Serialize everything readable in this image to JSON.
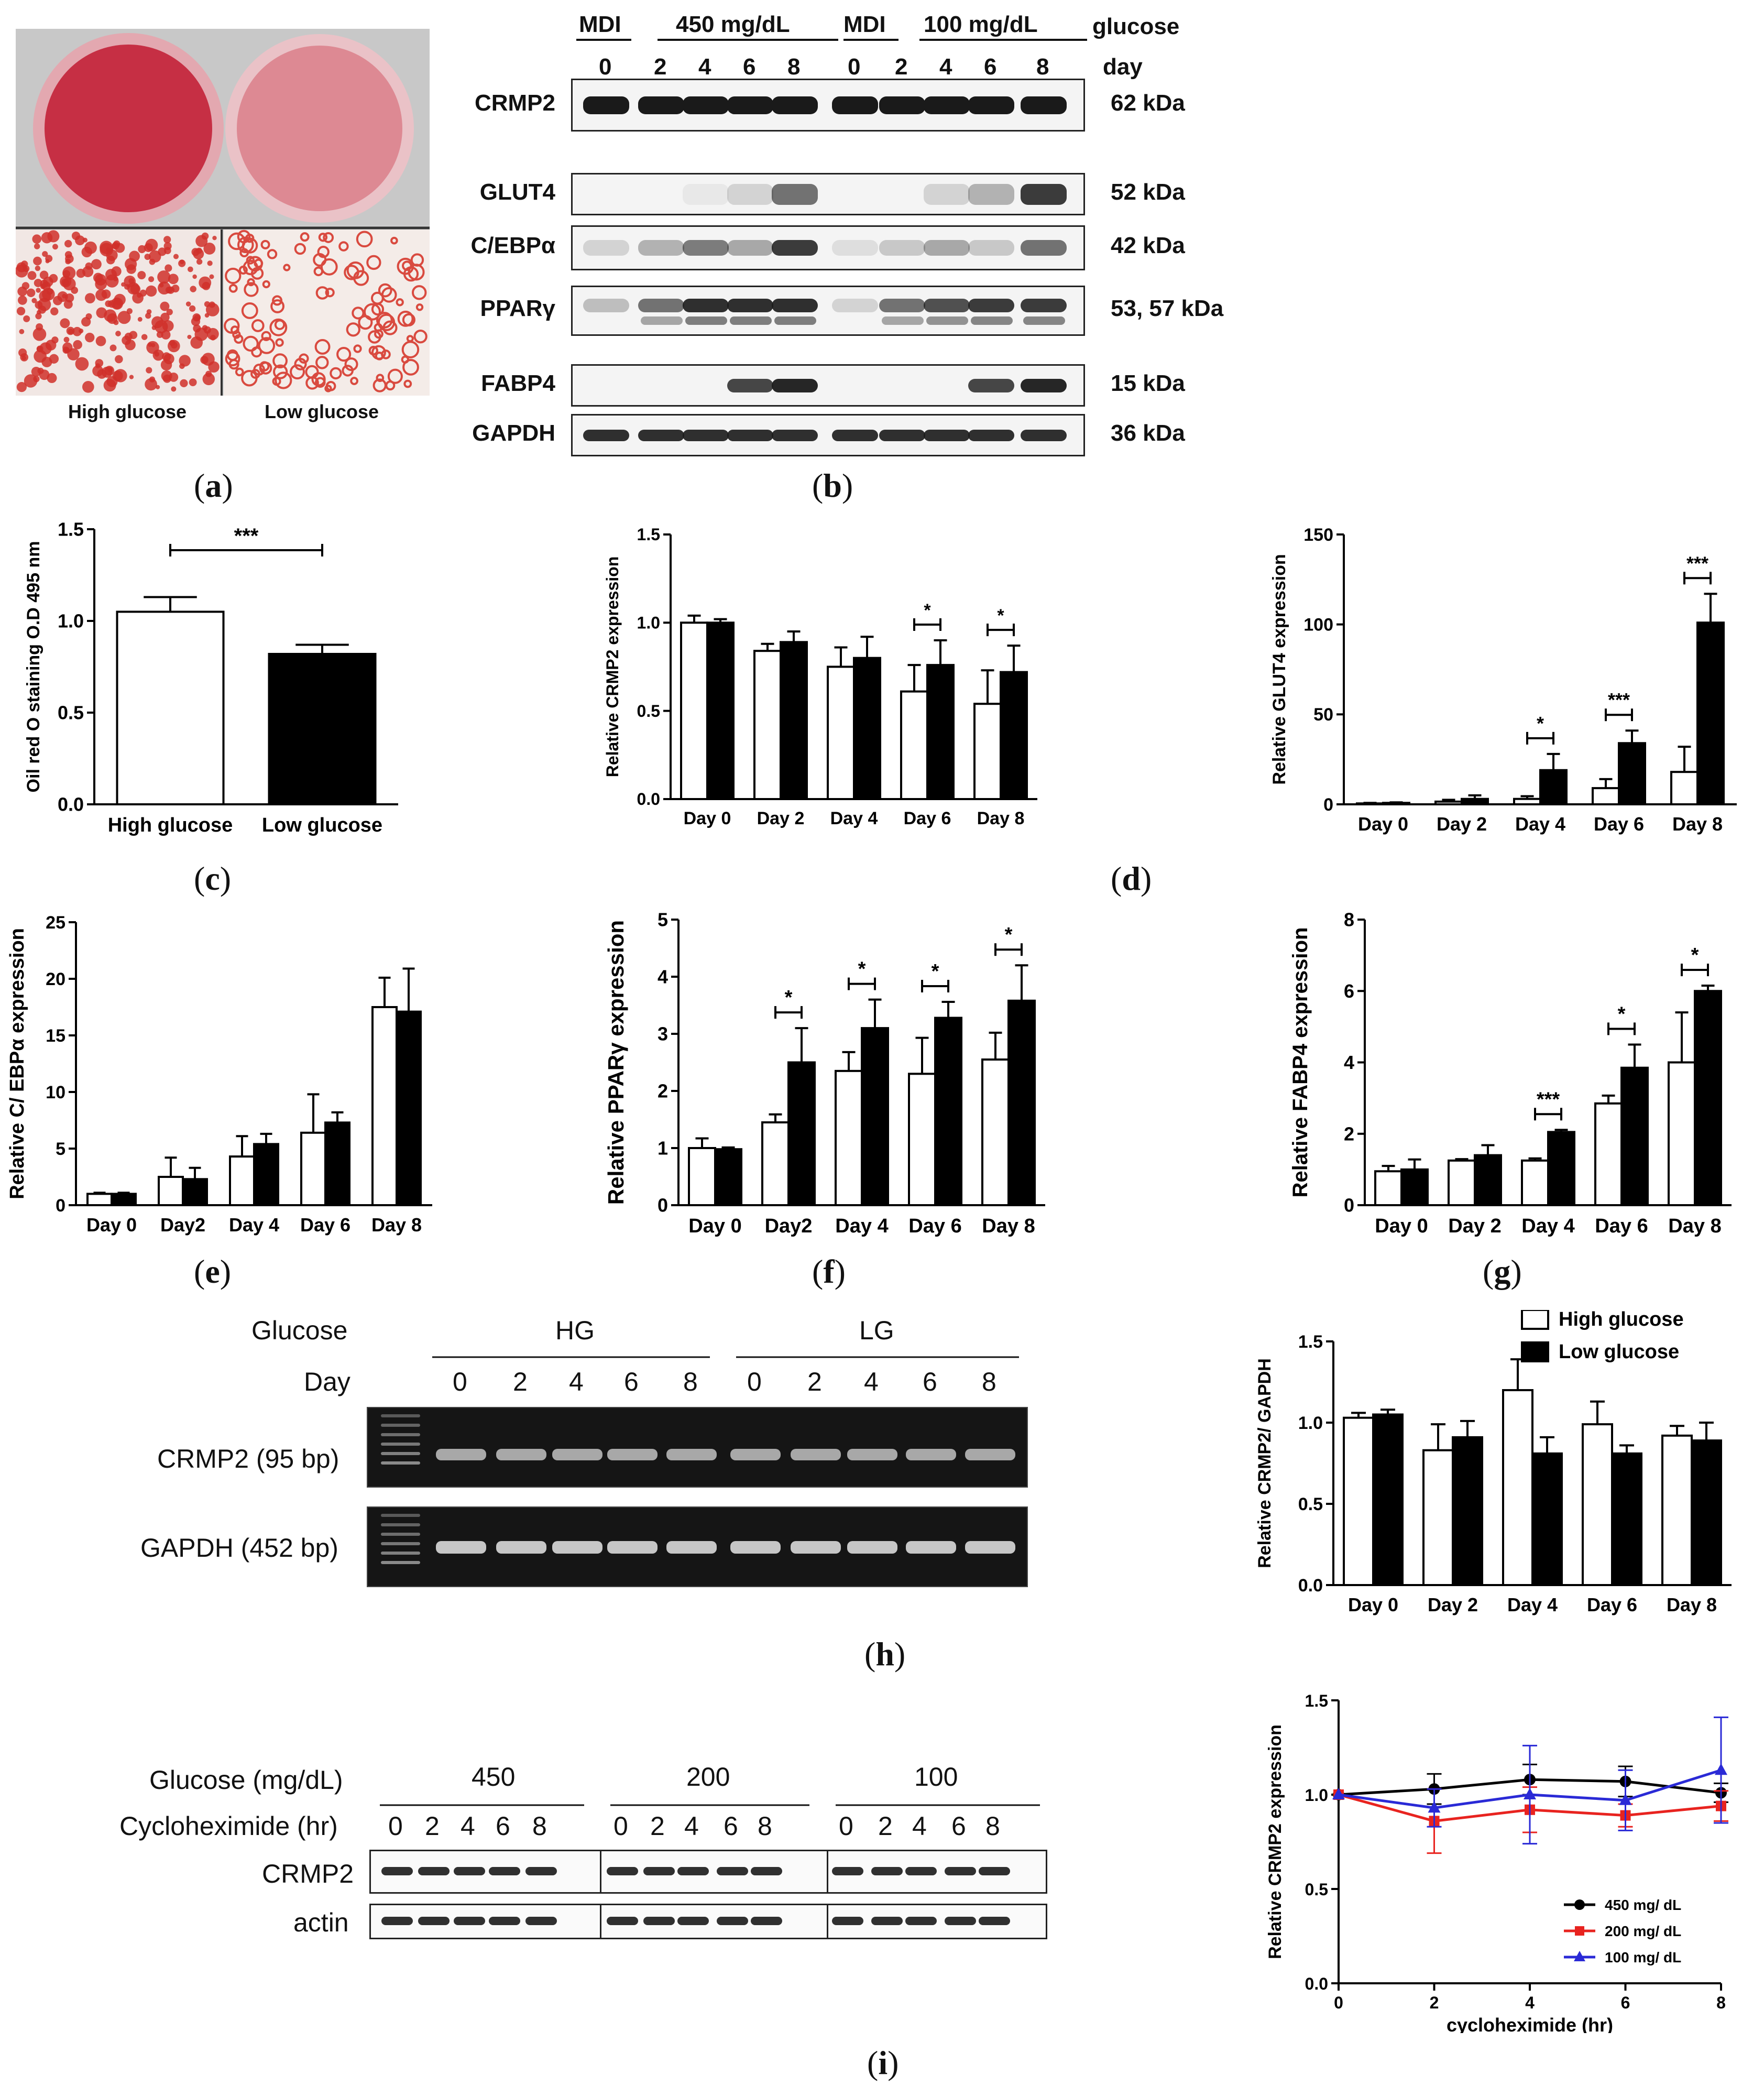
{
  "figure": {
    "panels": {
      "a": {
        "label": "(a)",
        "letter": "a",
        "captions": [
          "High glucose",
          "Low glucose"
        ],
        "colors": {
          "stain": "#c9283b",
          "dish": "#d97a86"
        }
      },
      "b": {
        "label": "(b)",
        "letter": "b",
        "headers": {
          "mdi_1": "MDI",
          "hg": "450 mg/dL",
          "mdi_2": "MDI",
          "lg": "100 mg/dL",
          "glucose": "glucose",
          "day": "day"
        },
        "days": [
          "0",
          "2",
          "4",
          "6",
          "8",
          "0",
          "2",
          "4",
          "6",
          "8"
        ],
        "rows": [
          {
            "name": "CRMP2",
            "size": "62 kDa"
          },
          {
            "name": "GLUT4",
            "size": "52 kDa"
          },
          {
            "name": "C/EBPα",
            "size": "42 kDa"
          },
          {
            "name": "PPARγ",
            "size": "53, 57 kDa"
          },
          {
            "name": "FABP4",
            "size": "15 kDa"
          },
          {
            "name": "GAPDH",
            "size": "36 kDa"
          }
        ]
      },
      "c": {
        "label": "(c)",
        "letter": "c"
      },
      "d": {
        "label": "(d)",
        "letter": "d"
      },
      "e": {
        "label": "(e)",
        "letter": "e"
      },
      "f": {
        "label": "(f)",
        "letter": "f"
      },
      "g": {
        "label": "(g)",
        "letter": "g"
      },
      "h": {
        "label": "(h)",
        "letter": "h",
        "glucose_label": "Glucose",
        "day_label": "Day",
        "hg": "HG",
        "lg": "LG",
        "days": [
          "0",
          "2",
          "4",
          "6",
          "8",
          "0",
          "2",
          "4",
          "6",
          "8"
        ],
        "rows": [
          "CRMP2 (95 bp)",
          "GAPDH (452 bp)"
        ],
        "legend": {
          "high": "High glucose",
          "low": "Low glucose"
        }
      },
      "i": {
        "label": "(i)",
        "letter": "i",
        "glucose_label": "Glucose (mg/dL)",
        "chx_label": "Cycloheximide (hr)",
        "groups": [
          "450",
          "200",
          "100"
        ],
        "times": [
          "0",
          "2",
          "4",
          "6",
          "8",
          "0",
          "2",
          "4",
          "6",
          "8",
          "0",
          "2",
          "4",
          "6",
          "8"
        ],
        "rows": [
          "CRMP2",
          "actin"
        ]
      }
    },
    "colors": {
      "bar_high": "#ffffff",
      "bar_low": "#000000",
      "line_450": "#000000",
      "line_200": "#e8231f",
      "line_100": "#2a2ad6"
    }
  },
  "chart_data": [
    {
      "id": "c",
      "type": "bar",
      "categories": [
        "High glucose",
        "Low glucose"
      ],
      "values": [
        1.05,
        0.82
      ],
      "errors": [
        0.08,
        0.05
      ],
      "fills": [
        "#ffffff",
        "#000000"
      ],
      "ylabel": "Oil red O staining O.D 495 nm",
      "ylim": [
        0,
        1.5
      ],
      "yticks": [
        "0.0",
        "0.5",
        "1.0",
        "1.5"
      ],
      "significance": [
        {
          "between": [
            0,
            1
          ],
          "text": "***"
        }
      ]
    },
    {
      "id": "d1",
      "type": "bar",
      "categories": [
        "Day 0",
        "Day 2",
        "Day 4",
        "Day 6",
        "Day 8"
      ],
      "series": [
        {
          "name": "High glucose",
          "values": [
            1.0,
            0.84,
            0.75,
            0.61,
            0.54
          ],
          "errors": [
            0.04,
            0.04,
            0.11,
            0.15,
            0.19
          ]
        },
        {
          "name": "Low glucose",
          "values": [
            1.0,
            0.89,
            0.8,
            0.76,
            0.72
          ],
          "errors": [
            0.02,
            0.06,
            0.12,
            0.14,
            0.15
          ]
        }
      ],
      "ylabel": "Relative CRMP2 expression",
      "ylim": [
        0,
        1.5
      ],
      "yticks": [
        "0.0",
        "0.5",
        "1.0",
        "1.5"
      ],
      "significance": [
        {
          "index": 3,
          "text": "*"
        },
        {
          "index": 4,
          "text": "*"
        }
      ]
    },
    {
      "id": "d2",
      "type": "bar",
      "categories": [
        "Day 0",
        "Day 2",
        "Day 4",
        "Day 6",
        "Day 8"
      ],
      "series": [
        {
          "name": "High glucose",
          "values": [
            0.5,
            1.5,
            3.0,
            9.0,
            18.0
          ],
          "errors": [
            0.3,
            1.0,
            1.5,
            5.0,
            14.0
          ]
        },
        {
          "name": "Low glucose",
          "values": [
            0.8,
            3.0,
            19.0,
            34.0,
            101.0
          ],
          "errors": [
            0.3,
            2.0,
            9.0,
            7.0,
            16.0
          ]
        }
      ],
      "ylabel": "Relative GLUT4 expression",
      "ylim": [
        0,
        150
      ],
      "yticks": [
        "0",
        "50",
        "100",
        "150"
      ],
      "significance": [
        {
          "index": 2,
          "text": "*"
        },
        {
          "index": 3,
          "text": "***"
        },
        {
          "index": 4,
          "text": "***"
        }
      ]
    },
    {
      "id": "e",
      "type": "bar",
      "categories": [
        "Day 0",
        "Day2",
        "Day 4",
        "Day 6",
        "Day 8"
      ],
      "series": [
        {
          "name": "High glucose",
          "values": [
            1.0,
            2.5,
            4.3,
            6.4,
            17.5
          ],
          "errors": [
            0.1,
            1.7,
            1.8,
            3.4,
            2.6
          ]
        },
        {
          "name": "Low glucose",
          "values": [
            1.0,
            2.3,
            5.4,
            7.3,
            17.1
          ],
          "errors": [
            0.1,
            1.0,
            0.9,
            0.9,
            3.8
          ]
        }
      ],
      "ylabel": "Relative C/ EBPα expression",
      "ylim": [
        0,
        25
      ],
      "yticks": [
        "0",
        "5",
        "10",
        "15",
        "20",
        "25"
      ],
      "significance": []
    },
    {
      "id": "f",
      "type": "bar",
      "categories": [
        "Day 0",
        "Day2",
        "Day 4",
        "Day 6",
        "Day 8"
      ],
      "series": [
        {
          "name": "High glucose",
          "values": [
            1.0,
            1.45,
            2.35,
            2.3,
            2.55
          ],
          "errors": [
            0.17,
            0.14,
            0.33,
            0.63,
            0.47
          ]
        },
        {
          "name": "Low glucose",
          "values": [
            0.98,
            2.5,
            3.1,
            3.28,
            3.58
          ],
          "errors": [
            0.03,
            0.6,
            0.5,
            0.28,
            0.62
          ]
        }
      ],
      "ylabel": "Relative PPARγ expression",
      "ylim": [
        0,
        5
      ],
      "yticks": [
        "0",
        "1",
        "2",
        "3",
        "4",
        "5"
      ],
      "significance": [
        {
          "index": 1,
          "text": "*"
        },
        {
          "index": 2,
          "text": "*"
        },
        {
          "index": 3,
          "text": "*"
        },
        {
          "index": 4,
          "text": "*"
        }
      ]
    },
    {
      "id": "g",
      "type": "bar",
      "categories": [
        "Day 0",
        "Day 2",
        "Day 4",
        "Day 6",
        "Day 8"
      ],
      "series": [
        {
          "name": "High glucose",
          "values": [
            0.95,
            1.25,
            1.25,
            2.85,
            4.0
          ],
          "errors": [
            0.15,
            0.04,
            0.06,
            0.22,
            1.4
          ]
        },
        {
          "name": "Low glucose",
          "values": [
            1.0,
            1.4,
            2.05,
            3.85,
            6.0
          ],
          "errors": [
            0.28,
            0.28,
            0.06,
            0.65,
            0.15
          ]
        }
      ],
      "ylabel": "Relative FABP4 expression",
      "ylim": [
        0,
        8
      ],
      "yticks": [
        "0",
        "2",
        "4",
        "6",
        "8"
      ],
      "significance": [
        {
          "index": 2,
          "text": "***"
        },
        {
          "index": 3,
          "text": "*"
        },
        {
          "index": 4,
          "text": "*"
        }
      ]
    },
    {
      "id": "h",
      "type": "bar",
      "categories": [
        "Day 0",
        "Day 2",
        "Day 4",
        "Day 6",
        "Day 8"
      ],
      "series": [
        {
          "name": "High glucose",
          "values": [
            1.03,
            0.83,
            1.2,
            0.99,
            0.92
          ],
          "errors": [
            0.03,
            0.16,
            0.19,
            0.14,
            0.06
          ]
        },
        {
          "name": "Low glucose",
          "values": [
            1.05,
            0.91,
            0.81,
            0.81,
            0.89
          ],
          "errors": [
            0.03,
            0.1,
            0.1,
            0.05,
            0.11
          ]
        }
      ],
      "ylabel": "Relative CRMP2/ GAPDH",
      "ylim": [
        0,
        1.5
      ],
      "yticks": [
        "0.0",
        "0.5",
        "1.0",
        "1.5"
      ],
      "legend": [
        "High glucose",
        "Low glucose"
      ],
      "significance": []
    },
    {
      "id": "i",
      "type": "line",
      "x": [
        0,
        2,
        4,
        6,
        8
      ],
      "series": [
        {
          "name": "450 mg/ dL",
          "values": [
            1.0,
            1.03,
            1.08,
            1.07,
            1.01
          ],
          "errors": [
            0,
            0.08,
            0.08,
            0.08,
            0.05
          ],
          "marker": "circle"
        },
        {
          "name": "200 mg/ dL",
          "values": [
            1.0,
            0.86,
            0.92,
            0.89,
            0.94
          ],
          "errors": [
            0,
            0.17,
            0.12,
            0.06,
            0.08
          ],
          "marker": "square"
        },
        {
          "name": "100 mg/ dL",
          "values": [
            1.0,
            0.93,
            1.0,
            0.97,
            1.13
          ],
          "errors": [
            0,
            0.1,
            0.26,
            0.16,
            0.28
          ],
          "marker": "triangle"
        }
      ],
      "xlabel": "cycloheximide (hr)",
      "ylabel": "Relative CRMP2 expression",
      "xlim": [
        0,
        8
      ],
      "ylim": [
        0,
        1.5
      ],
      "xticks": [
        "0",
        "2",
        "4",
        "6",
        "8"
      ],
      "yticks": [
        "0.0",
        "0.5",
        "1.0",
        "1.5"
      ]
    }
  ]
}
